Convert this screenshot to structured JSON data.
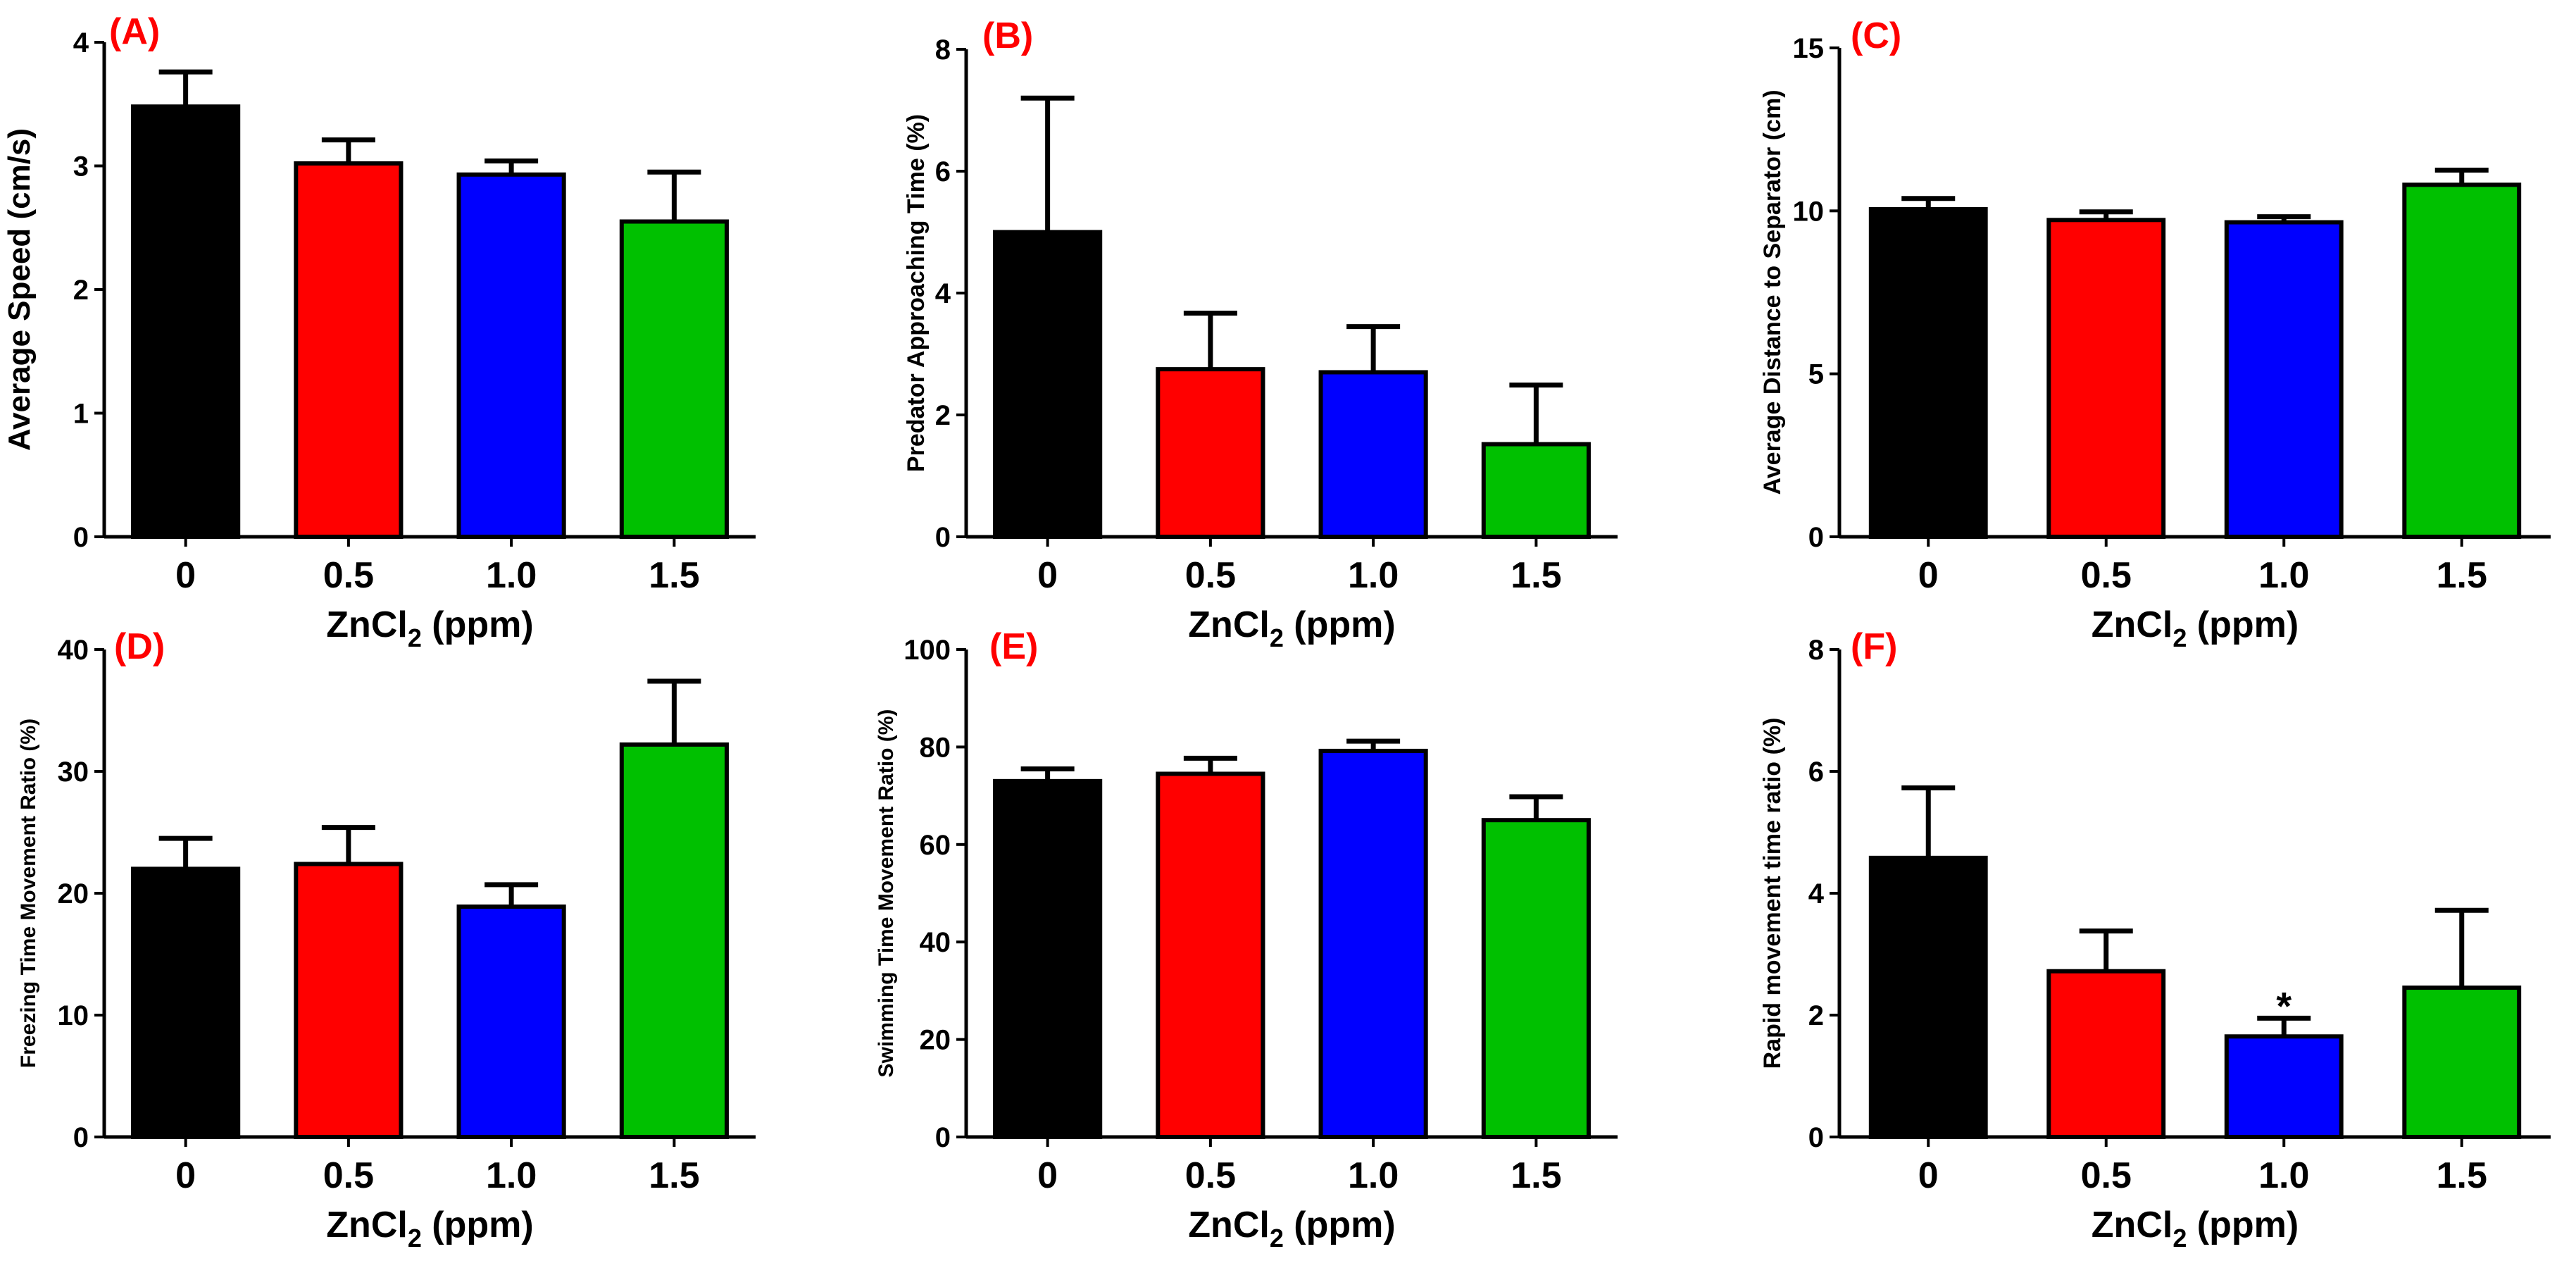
{
  "chart_data": [
    {
      "type": "bar",
      "panel_label": "(A)",
      "ylabel": "Average Speed (cm/s)",
      "xlabel_main": "ZnCl",
      "xlabel_sub": "2",
      "xlabel_tail": " (ppm)",
      "categories": [
        "0",
        "0.5",
        "1.0",
        "1.5"
      ],
      "values": [
        3.48,
        3.02,
        2.93,
        2.55
      ],
      "errors": [
        0.28,
        0.19,
        0.11,
        0.4
      ],
      "colors": [
        "#000000",
        "#ff0000",
        "#0000ff",
        "#00c000"
      ],
      "ylim": [
        0,
        4
      ],
      "yticks": [
        "0",
        "1",
        "2",
        "3",
        "4"
      ],
      "annotations": []
    },
    {
      "type": "bar",
      "panel_label": "(B)",
      "ylabel": "Predator Approaching Time (%)",
      "xlabel_main": "ZnCl",
      "xlabel_sub": "2",
      "xlabel_tail": " (ppm)",
      "categories": [
        "0",
        "0.5",
        "1.0",
        "1.5"
      ],
      "values": [
        5.0,
        2.75,
        2.7,
        1.52
      ],
      "errors": [
        2.2,
        0.92,
        0.75,
        0.97
      ],
      "colors": [
        "#000000",
        "#ff0000",
        "#0000ff",
        "#00c000"
      ],
      "ylim": [
        0,
        8
      ],
      "yticks": [
        "0",
        "2",
        "4",
        "6",
        "8"
      ],
      "annotations": []
    },
    {
      "type": "bar",
      "panel_label": "(C)",
      "ylabel": "Average Distance to Separator (cm)",
      "xlabel_main": "ZnCl",
      "xlabel_sub": "2",
      "xlabel_tail": " (ppm)",
      "categories": [
        "0",
        "0.5",
        "1.0",
        "1.5"
      ],
      "values": [
        10.05,
        9.72,
        9.65,
        10.8
      ],
      "errors": [
        0.33,
        0.25,
        0.17,
        0.45
      ],
      "colors": [
        "#000000",
        "#ff0000",
        "#0000ff",
        "#00c000"
      ],
      "ylim": [
        0,
        15
      ],
      "yticks": [
        "0",
        "5",
        "10",
        "15"
      ],
      "annotations": []
    },
    {
      "type": "bar",
      "panel_label": "(D)",
      "ylabel": "Freezing Time Movement Ratio (%)",
      "xlabel_main": "ZnCl",
      "xlabel_sub": "2",
      "xlabel_tail": " (ppm)",
      "categories": [
        "0",
        "0.5",
        "1.0",
        "1.5"
      ],
      "values": [
        22.0,
        22.4,
        18.9,
        32.2
      ],
      "errors": [
        2.5,
        3.0,
        1.8,
        5.2
      ],
      "colors": [
        "#000000",
        "#ff0000",
        "#0000ff",
        "#00c000"
      ],
      "ylim": [
        0,
        40
      ],
      "yticks": [
        "0",
        "10",
        "20",
        "30",
        "40"
      ],
      "annotations": []
    },
    {
      "type": "bar",
      "panel_label": "(E)",
      "ylabel": "Swimming Time Movement  Ratio (%)",
      "xlabel_main": "ZnCl",
      "xlabel_sub": "2",
      "xlabel_tail": " (ppm)",
      "categories": [
        "0",
        "0.5",
        "1.0",
        "1.5"
      ],
      "values": [
        73.0,
        74.5,
        79.2,
        65.0
      ],
      "errors": [
        2.5,
        3.2,
        2.0,
        4.8
      ],
      "colors": [
        "#000000",
        "#ff0000",
        "#0000ff",
        "#00c000"
      ],
      "ylim": [
        0,
        100
      ],
      "yticks": [
        "0",
        "20",
        "40",
        "60",
        "80",
        "100"
      ],
      "annotations": []
    },
    {
      "type": "bar",
      "panel_label": "(F)",
      "ylabel": "Rapid movement time ratio (%)",
      "xlabel_main": "ZnCl",
      "xlabel_sub": "2",
      "xlabel_tail": " (ppm)",
      "categories": [
        "0",
        "0.5",
        "1.0",
        "1.5"
      ],
      "values": [
        4.58,
        2.72,
        1.65,
        2.45
      ],
      "errors": [
        1.15,
        0.66,
        0.3,
        1.27
      ],
      "colors": [
        "#000000",
        "#ff0000",
        "#0000ff",
        "#00c000"
      ],
      "ylim": [
        0,
        8
      ],
      "yticks": [
        "0",
        "2",
        "4",
        "6",
        "8"
      ],
      "annotations": [
        {
          "category": "1.0",
          "text": "*"
        }
      ]
    }
  ],
  "style": {
    "panel_label_color": "#ff0000",
    "axis_color": "#000000"
  }
}
